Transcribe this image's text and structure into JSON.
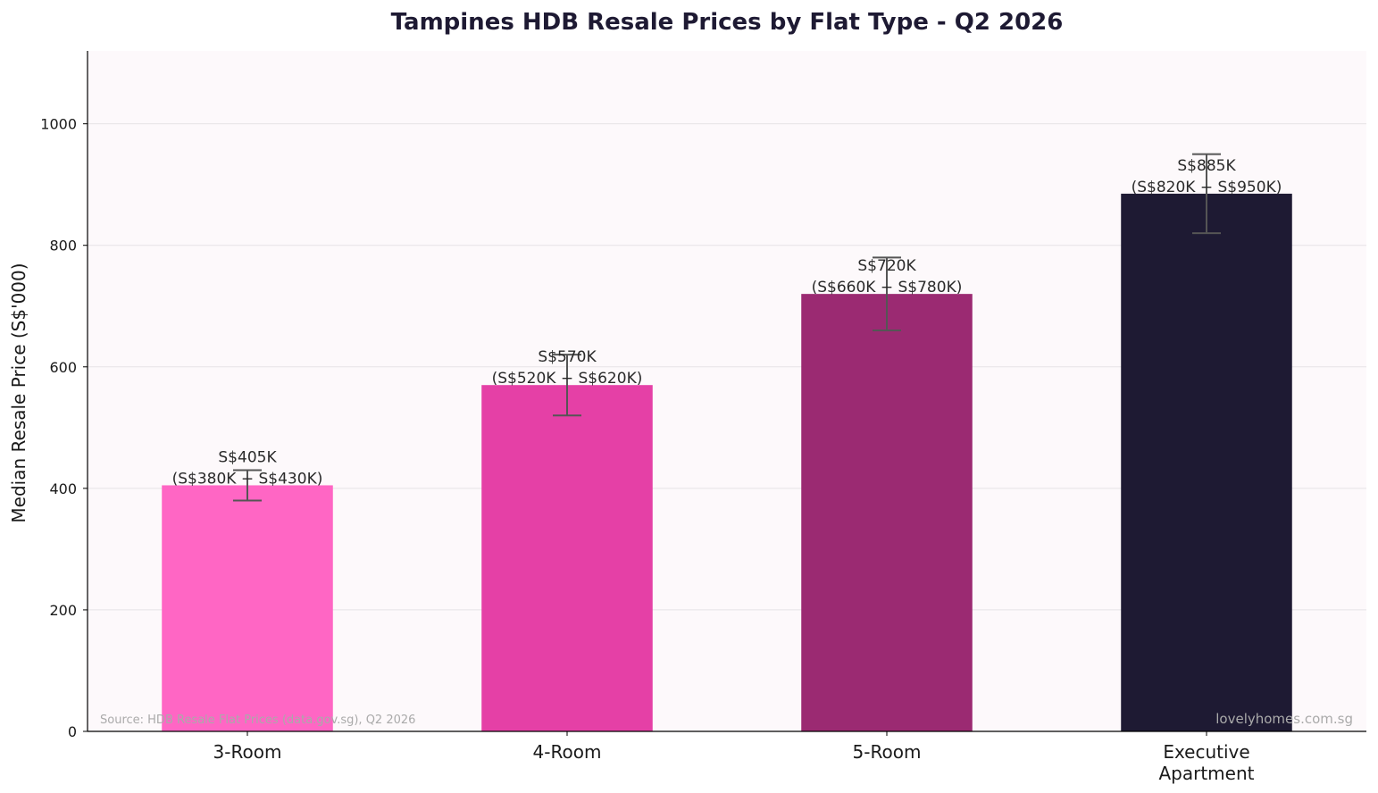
{
  "chart_data": {
    "type": "bar",
    "title": "Tampines HDB Resale Prices by Flat Type - Q2 2026",
    "ylabel": "Median Resale Price (S$'000)",
    "xlabel": "",
    "ylim": [
      0,
      1120
    ],
    "yticks": [
      0,
      200,
      400,
      600,
      800,
      1000
    ],
    "ytick_labels": [
      "0",
      "200",
      "400",
      "600",
      "800",
      "1000"
    ],
    "grid": "horizontal",
    "categories": [
      "3-Room",
      "4-Room",
      "5-Room",
      "Executive Apartment"
    ],
    "category_lines": [
      [
        "3-Room"
      ],
      [
        "4-Room"
      ],
      [
        "5-Room"
      ],
      [
        "Executive",
        "Apartment"
      ]
    ],
    "values": [
      405,
      570,
      720,
      885
    ],
    "error_low": [
      380,
      520,
      660,
      820
    ],
    "error_high": [
      430,
      620,
      780,
      950
    ],
    "value_labels": [
      "S$405K",
      "S$570K",
      "S$720K",
      "S$885K"
    ],
    "range_labels": [
      "(S$380K − S$430K)",
      "(S$520K − S$620K)",
      "(S$660K − S$780K)",
      "(S$820K − S$950K)"
    ],
    "colors": [
      "#ff66c4",
      "#e540a6",
      "#9b2a72",
      "#1e1a33"
    ],
    "plot_background": "#fdf9fb",
    "error_color": "#555555"
  },
  "footer": {
    "source": "Source: HDB Resale Flat Prices (data.gov.sg), Q2 2026",
    "watermark": "lovelyhomes.com.sg"
  }
}
